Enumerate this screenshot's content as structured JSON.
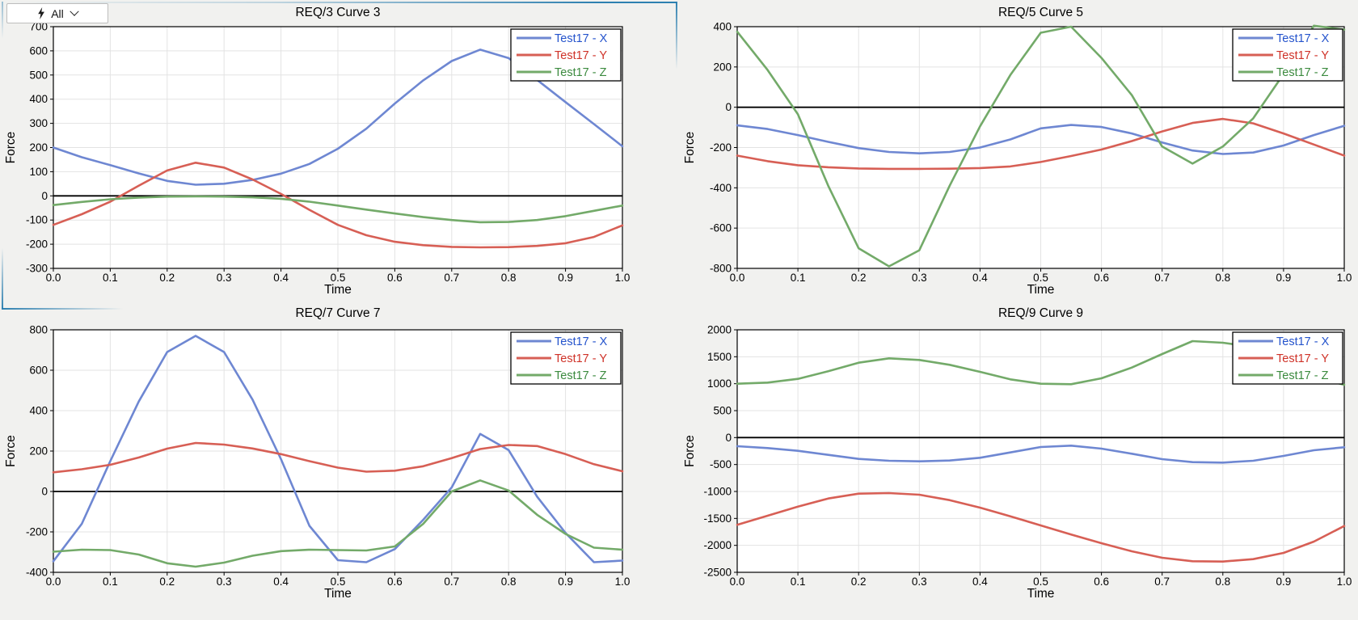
{
  "toolbar": {
    "filter_label": "All",
    "icons": [
      "lightning-icon",
      "chevron-down-icon"
    ]
  },
  "colors": {
    "page_background": "#f1f1ef",
    "plot_background": "#ffffff",
    "gridline": "#e3e3e3",
    "plot_border": "#000000",
    "zero_line": "#000000",
    "selection_highlight": "#2E80B0",
    "series_x_line": "#6E87D2",
    "series_x_label": "#2453CC",
    "series_y_line": "#D75F55",
    "series_y_label": "#CF3228",
    "series_z_line": "#73AA69",
    "series_z_label": "#3B8A3E"
  },
  "chart_data": [
    {
      "type": "line",
      "title": "REQ/3 Curve 3",
      "xlabel": "Time",
      "ylabel": "Force",
      "xlim": [
        0,
        1
      ],
      "ylim": [
        -300,
        700
      ],
      "xtick_step": 0.1,
      "ytick_step": 100,
      "grid": true,
      "zero_line": true,
      "legend_position": "top-right",
      "x": [
        0,
        0.05,
        0.1,
        0.15,
        0.2,
        0.25,
        0.3,
        0.35,
        0.4,
        0.45,
        0.5,
        0.55,
        0.6,
        0.65,
        0.7,
        0.75,
        0.8,
        0.85,
        0.9,
        0.95,
        1.0
      ],
      "series": [
        {
          "name": "Test17 - X",
          "line_color": "#6E87D2",
          "label_color": "#2453CC",
          "values": [
            200,
            160,
            127,
            93,
            62,
            46,
            50,
            66,
            92,
            132,
            195,
            278,
            382,
            478,
            558,
            605,
            570,
            480,
            388,
            297,
            205
          ]
        },
        {
          "name": "Test17 - Y",
          "line_color": "#D75F55",
          "label_color": "#CF3228",
          "values": [
            -120,
            -76,
            -24,
            42,
            105,
            137,
            117,
            68,
            8,
            -58,
            -120,
            -163,
            -190,
            -204,
            -211,
            -213,
            -212,
            -207,
            -196,
            -170,
            -122
          ]
        },
        {
          "name": "Test17 - Z",
          "line_color": "#73AA69",
          "label_color": "#3B8A3E",
          "values": [
            -38,
            -25,
            -14,
            -7,
            -3,
            -2,
            -3,
            -6,
            -12,
            -24,
            -40,
            -57,
            -73,
            -88,
            -100,
            -109,
            -108,
            -100,
            -84,
            -62,
            -40
          ]
        }
      ]
    },
    {
      "type": "line",
      "title": "REQ/5 Curve 5",
      "xlabel": "Time",
      "ylabel": "Force",
      "xlim": [
        0,
        1
      ],
      "ylim": [
        -800,
        400
      ],
      "xtick_step": 0.1,
      "ytick_step": 200,
      "grid": true,
      "zero_line": true,
      "legend_position": "top-right",
      "x": [
        0,
        0.05,
        0.1,
        0.15,
        0.2,
        0.25,
        0.3,
        0.35,
        0.4,
        0.45,
        0.5,
        0.55,
        0.6,
        0.65,
        0.7,
        0.75,
        0.8,
        0.85,
        0.9,
        0.95,
        1.0
      ],
      "series": [
        {
          "name": "Test17 - X",
          "line_color": "#6E87D2",
          "label_color": "#2453CC",
          "values": [
            -90,
            -108,
            -138,
            -172,
            -203,
            -222,
            -229,
            -222,
            -200,
            -160,
            -105,
            -88,
            -98,
            -130,
            -175,
            -215,
            -232,
            -225,
            -190,
            -138,
            -92
          ]
        },
        {
          "name": "Test17 - Y",
          "line_color": "#D75F55",
          "label_color": "#CF3228",
          "values": [
            -240,
            -268,
            -288,
            -298,
            -304,
            -306,
            -306,
            -305,
            -302,
            -294,
            -272,
            -242,
            -210,
            -168,
            -120,
            -78,
            -58,
            -80,
            -130,
            -185,
            -240
          ]
        },
        {
          "name": "Test17 - Z",
          "line_color": "#73AA69",
          "label_color": "#3B8A3E",
          "values": [
            375,
            185,
            -35,
            -390,
            -700,
            -790,
            -710,
            -390,
            -95,
            160,
            370,
            400,
            245,
            60,
            -195,
            -280,
            -195,
            -55,
            165,
            405,
            385
          ]
        }
      ]
    },
    {
      "type": "line",
      "title": "REQ/7 Curve 7",
      "xlabel": "Time",
      "ylabel": "Force",
      "xlim": [
        0,
        1
      ],
      "ylim": [
        -400,
        800
      ],
      "xtick_step": 0.1,
      "ytick_step": 200,
      "grid": true,
      "zero_line": true,
      "legend_position": "top-right",
      "x": [
        0,
        0.05,
        0.1,
        0.15,
        0.2,
        0.25,
        0.3,
        0.35,
        0.4,
        0.45,
        0.5,
        0.55,
        0.6,
        0.65,
        0.7,
        0.75,
        0.8,
        0.85,
        0.9,
        0.95,
        1.0
      ],
      "series": [
        {
          "name": "Test17 - X",
          "line_color": "#6E87D2",
          "label_color": "#2453CC",
          "values": [
            -345,
            -160,
            150,
            445,
            690,
            770,
            690,
            455,
            160,
            -170,
            -340,
            -350,
            -285,
            -140,
            20,
            285,
            205,
            -25,
            -205,
            -350,
            -342
          ]
        },
        {
          "name": "Test17 - Y",
          "line_color": "#D75F55",
          "label_color": "#CF3228",
          "values": [
            95,
            110,
            132,
            168,
            212,
            240,
            232,
            213,
            185,
            150,
            118,
            98,
            103,
            125,
            165,
            210,
            230,
            225,
            185,
            135,
            100
          ]
        },
        {
          "name": "Test17 - Z",
          "line_color": "#73AA69",
          "label_color": "#3B8A3E",
          "values": [
            -298,
            -288,
            -290,
            -312,
            -355,
            -372,
            -352,
            -318,
            -295,
            -288,
            -290,
            -292,
            -272,
            -160,
            0,
            55,
            5,
            -115,
            -210,
            -278,
            -288
          ]
        }
      ]
    },
    {
      "type": "line",
      "title": "REQ/9 Curve 9",
      "xlabel": "Time",
      "ylabel": "Force",
      "xlim": [
        0,
        1
      ],
      "ylim": [
        -2500,
        2000
      ],
      "xtick_step": 0.1,
      "ytick_step": 500,
      "grid": true,
      "zero_line": true,
      "legend_position": "top-right",
      "x": [
        0,
        0.05,
        0.1,
        0.15,
        0.2,
        0.25,
        0.3,
        0.35,
        0.4,
        0.45,
        0.5,
        0.55,
        0.6,
        0.65,
        0.7,
        0.75,
        0.8,
        0.85,
        0.9,
        0.95,
        1.0
      ],
      "series": [
        {
          "name": "Test17 - X",
          "line_color": "#6E87D2",
          "label_color": "#2453CC",
          "values": [
            -160,
            -195,
            -245,
            -320,
            -395,
            -430,
            -440,
            -425,
            -375,
            -275,
            -175,
            -150,
            -205,
            -300,
            -400,
            -455,
            -465,
            -430,
            -340,
            -235,
            -180
          ]
        },
        {
          "name": "Test17 - Y",
          "line_color": "#D75F55",
          "label_color": "#CF3228",
          "values": [
            -1620,
            -1450,
            -1280,
            -1130,
            -1040,
            -1030,
            -1060,
            -1160,
            -1300,
            -1460,
            -1630,
            -1800,
            -1960,
            -2110,
            -2230,
            -2295,
            -2300,
            -2255,
            -2140,
            -1930,
            -1640
          ]
        },
        {
          "name": "Test17 - Z",
          "line_color": "#73AA69",
          "label_color": "#3B8A3E",
          "values": [
            1000,
            1020,
            1090,
            1230,
            1390,
            1470,
            1440,
            1350,
            1220,
            1080,
            1000,
            990,
            1100,
            1300,
            1550,
            1790,
            1760,
            1680,
            1420,
            1120,
            980
          ]
        }
      ]
    }
  ]
}
